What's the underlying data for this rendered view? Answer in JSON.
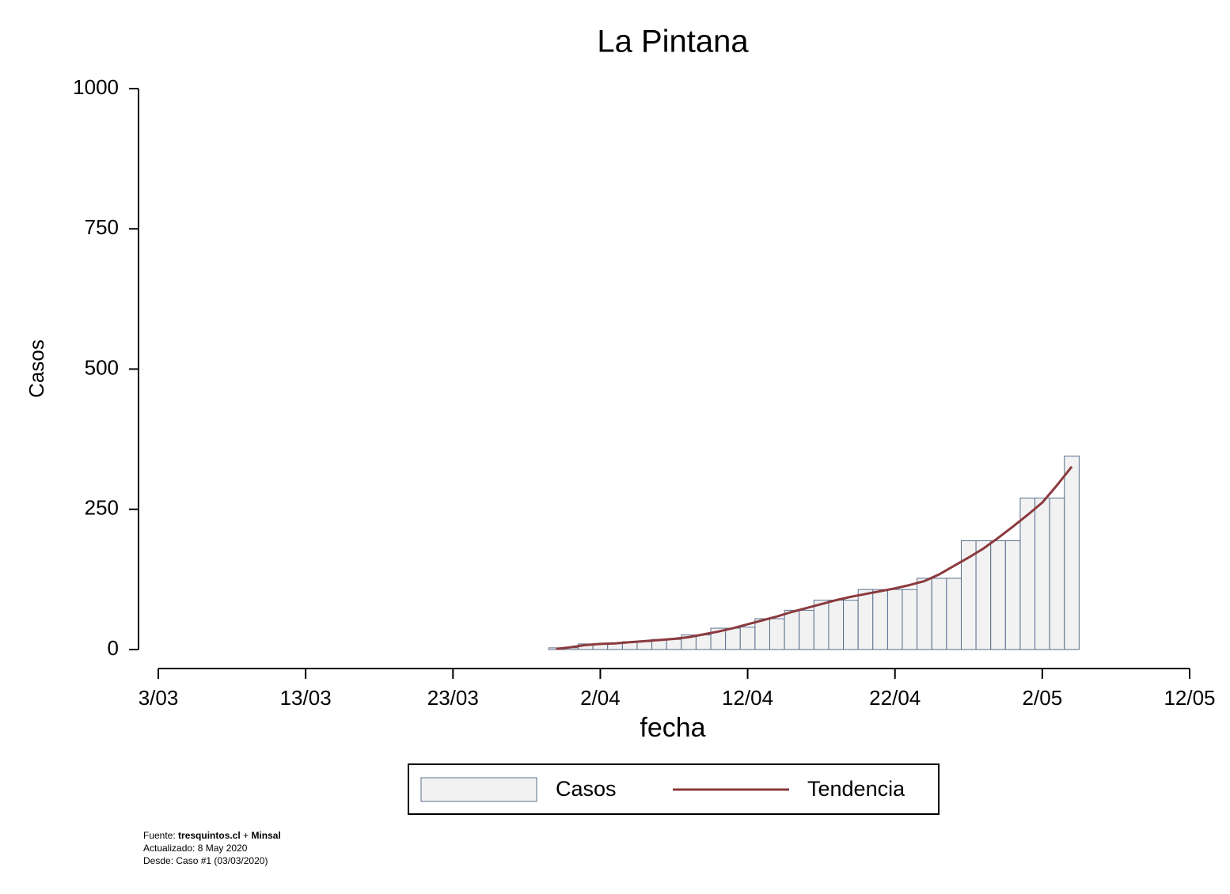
{
  "chart_data": {
    "type": "bar",
    "title": "La Pintana",
    "x_label": "fecha",
    "y_label": "Casos",
    "x": [
      "30/03",
      "31/03",
      "1/04",
      "2/04",
      "3/04",
      "4/04",
      "5/04",
      "6/04",
      "7/04",
      "8/04",
      "9/04",
      "10/04",
      "11/04",
      "12/04",
      "13/04",
      "14/04",
      "15/04",
      "16/04",
      "17/04",
      "18/04",
      "19/04",
      "20/04",
      "21/04",
      "22/04",
      "23/04",
      "24/04",
      "25/04",
      "26/04",
      "27/04",
      "28/04",
      "29/04",
      "30/04",
      "1/05",
      "2/05",
      "3/05",
      "4/05"
    ],
    "series": [
      {
        "name": "Casos",
        "type": "bar",
        "color": "#f2f2f2",
        "edge_color": "#5a6e8c",
        "values": [
          3,
          3,
          10,
          10,
          12,
          14,
          14,
          18,
          18,
          26,
          26,
          38,
          38,
          40,
          55,
          55,
          70,
          70,
          88,
          88,
          88,
          107,
          107,
          107,
          107,
          127,
          127,
          127,
          194,
          194,
          194,
          194,
          270,
          270,
          270,
          345
        ]
      },
      {
        "name": "Tendencia",
        "type": "line",
        "color": "#8b3a3e",
        "values": [
          1,
          4,
          8,
          10,
          11,
          13,
          15,
          17,
          19,
          22,
          27,
          32,
          38,
          45,
          52,
          59,
          67,
          74,
          81,
          88,
          94,
          99,
          104,
          109,
          115,
          122,
          134,
          149,
          164,
          180,
          199,
          219,
          240,
          262,
          293,
          326
        ]
      }
    ],
    "xlim": [
      "3/03",
      "12/05"
    ],
    "xticks": [
      "3/03",
      "13/03",
      "23/03",
      "2/04",
      "12/04",
      "22/04",
      "2/05",
      "12/05"
    ],
    "ylim": [
      0,
      1000
    ],
    "yticks": [
      0,
      250,
      500,
      750,
      1000
    ]
  },
  "footer": {
    "source_label": "Fuente:",
    "source_site": "tresquintos.cl",
    "source_join": "+",
    "source_org": "Minsal",
    "updated": "Actualizado: 8 May 2020",
    "since": "Desde: Caso #1  (03/03/2020)"
  }
}
